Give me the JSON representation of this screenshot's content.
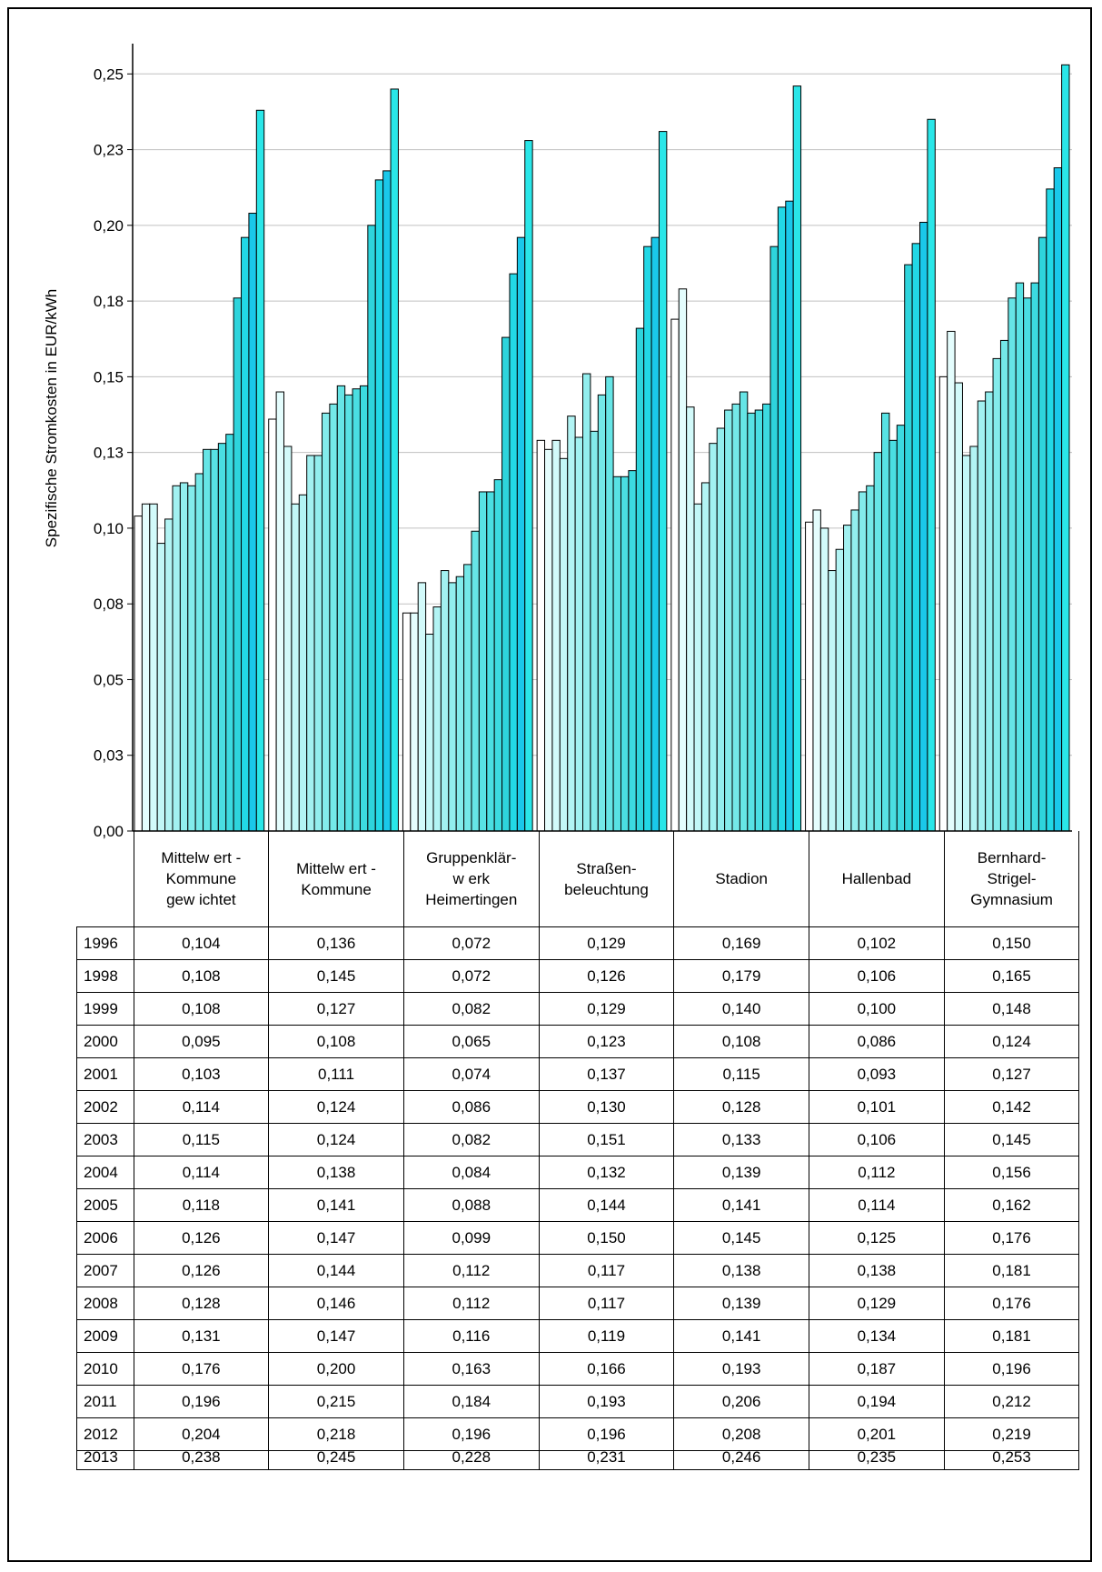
{
  "chart_data": {
    "type": "bar",
    "ylabel": "Spezifische Stromkosten in EUR/kWh",
    "ylim": [
      0,
      0.26
    ],
    "yticks": [
      "0,00",
      "0,03",
      "0,05",
      "0,08",
      "0,10",
      "0,13",
      "0,15",
      "0,18",
      "0,20",
      "0,23",
      "0,25"
    ],
    "ytick_values": [
      0,
      0.025,
      0.05,
      0.075,
      0.1,
      0.125,
      0.15,
      0.175,
      0.2,
      0.225,
      0.25
    ],
    "grid": true,
    "categories": [
      "Mittelw ert - Kommune gew ichtet",
      "Mittelw ert - Kommune",
      "Gruppenklär- w erk Heimertingen",
      "Straßen- beleuchtung",
      "Stadion",
      "Hallenbad",
      "Bernhard- Strigel- Gymnasium"
    ],
    "category_lines": [
      [
        "Mittelw ert -",
        "Kommune",
        "gew ichtet"
      ],
      [
        "Mittelw ert -",
        "Kommune"
      ],
      [
        "Gruppenklär-",
        "w erk",
        "Heimertingen"
      ],
      [
        "Straßen-",
        "beleuchtung"
      ],
      [
        "Stadion"
      ],
      [
        "Hallenbad"
      ],
      [
        "Bernhard-",
        "Strigel-",
        "Gymnasium"
      ]
    ],
    "series": [
      {
        "name": "1996",
        "color": "#ffffff",
        "values": [
          0.104,
          0.136,
          0.072,
          0.129,
          0.169,
          0.102,
          0.15
        ],
        "labels": [
          "0,104",
          "0,136",
          "0,072",
          "0,129",
          "0,169",
          "0,102",
          "0,150"
        ]
      },
      {
        "name": "1998",
        "color": "#e4fdfd",
        "values": [
          0.108,
          0.145,
          0.072,
          0.126,
          0.179,
          0.106,
          0.165
        ],
        "labels": [
          "0,108",
          "0,145",
          "0,072",
          "0,126",
          "0,179",
          "0,106",
          "0,165"
        ]
      },
      {
        "name": "1999",
        "color": "#d2fafa",
        "values": [
          0.108,
          0.127,
          0.082,
          0.129,
          0.14,
          0.1,
          0.148
        ],
        "labels": [
          "0,108",
          "0,127",
          "0,082",
          "0,129",
          "0,140",
          "0,100",
          "0,148"
        ]
      },
      {
        "name": "2000",
        "color": "#c2f7f7",
        "values": [
          0.095,
          0.108,
          0.065,
          0.123,
          0.108,
          0.086,
          0.124
        ],
        "labels": [
          "0,095",
          "0,108",
          "0,065",
          "0,123",
          "0,108",
          "0,086",
          "0,124"
        ]
      },
      {
        "name": "2001",
        "color": "#b2f4f4",
        "values": [
          0.103,
          0.111,
          0.074,
          0.137,
          0.115,
          0.093,
          0.127
        ],
        "labels": [
          "0,103",
          "0,111",
          "0,074",
          "0,137",
          "0,115",
          "0,093",
          "0,127"
        ]
      },
      {
        "name": "2002",
        "color": "#a2f1f1",
        "values": [
          0.114,
          0.124,
          0.086,
          0.13,
          0.128,
          0.101,
          0.142
        ],
        "labels": [
          "0,114",
          "0,124",
          "0,086",
          "0,130",
          "0,128",
          "0,101",
          "0,142"
        ]
      },
      {
        "name": "2003",
        "color": "#92eeee",
        "values": [
          0.115,
          0.124,
          0.082,
          0.151,
          0.133,
          0.106,
          0.145
        ],
        "labels": [
          "0,115",
          "0,124",
          "0,082",
          "0,151",
          "0,133",
          "0,106",
          "0,145"
        ]
      },
      {
        "name": "2004",
        "color": "#83ebeb",
        "values": [
          0.114,
          0.138,
          0.084,
          0.132,
          0.139,
          0.112,
          0.156
        ],
        "labels": [
          "0,114",
          "0,138",
          "0,084",
          "0,132",
          "0,139",
          "0,112",
          "0,156"
        ]
      },
      {
        "name": "2005",
        "color": "#74e8e8",
        "values": [
          0.118,
          0.141,
          0.088,
          0.144,
          0.141,
          0.114,
          0.162
        ],
        "labels": [
          "0,118",
          "0,141",
          "0,088",
          "0,144",
          "0,141",
          "0,114",
          "0,162"
        ]
      },
      {
        "name": "2006",
        "color": "#66e5e6",
        "values": [
          0.126,
          0.147,
          0.099,
          0.15,
          0.145,
          0.125,
          0.176
        ],
        "labels": [
          "0,126",
          "0,147",
          "0,099",
          "0,150",
          "0,145",
          "0,125",
          "0,176"
        ]
      },
      {
        "name": "2007",
        "color": "#58e2e4",
        "values": [
          0.126,
          0.144,
          0.112,
          0.117,
          0.138,
          0.138,
          0.181
        ],
        "labels": [
          "0,126",
          "0,144",
          "0,112",
          "0,117",
          "0,138",
          "0,138",
          "0,181"
        ]
      },
      {
        "name": "2008",
        "color": "#4adee2",
        "values": [
          0.128,
          0.146,
          0.112,
          0.117,
          0.139,
          0.129,
          0.176
        ],
        "labels": [
          "0,128",
          "0,146",
          "0,112",
          "0,117",
          "0,139",
          "0,129",
          "0,176"
        ]
      },
      {
        "name": "2009",
        "color": "#3cdae0",
        "values": [
          0.131,
          0.147,
          0.116,
          0.119,
          0.141,
          0.134,
          0.181
        ],
        "labels": [
          "0,131",
          "0,147",
          "0,116",
          "0,119",
          "0,141",
          "0,134",
          "0,181"
        ]
      },
      {
        "name": "2010",
        "color": "#2ed4dc",
        "values": [
          0.176,
          0.2,
          0.163,
          0.166,
          0.193,
          0.187,
          0.196
        ],
        "labels": [
          "0,176",
          "0,200",
          "0,163",
          "0,166",
          "0,193",
          "0,187",
          "0,196"
        ]
      },
      {
        "name": "2011",
        "color": "#22d8e6",
        "values": [
          0.196,
          0.215,
          0.184,
          0.193,
          0.206,
          0.194,
          0.212
        ],
        "labels": [
          "0,196",
          "0,215",
          "0,184",
          "0,193",
          "0,206",
          "0,194",
          "0,212"
        ]
      },
      {
        "name": "2012",
        "color": "#1ac8ea",
        "values": [
          0.204,
          0.218,
          0.196,
          0.196,
          0.208,
          0.201,
          0.219
        ],
        "labels": [
          "0,204",
          "0,218",
          "0,196",
          "0,196",
          "0,208",
          "0,201",
          "0,219"
        ]
      },
      {
        "name": "2013",
        "color": "#2ae6e8",
        "values": [
          0.238,
          0.245,
          0.228,
          0.231,
          0.246,
          0.235,
          0.253
        ],
        "labels": [
          "0,238",
          "0,245",
          "0,228",
          "0,231",
          "0,246",
          "0,235",
          "0,253"
        ]
      }
    ]
  }
}
